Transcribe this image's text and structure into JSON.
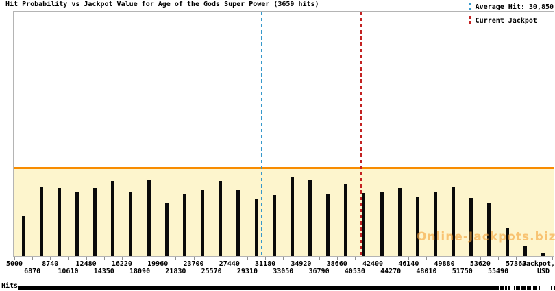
{
  "header": {
    "title": "Hit Probability vs Jackpot Value for Age of the Gods Super Power (3659 hits)"
  },
  "legend": {
    "items": [
      {
        "label": "Average Hit: 30,850",
        "color": "#3598CB",
        "line_style": "dashed"
      },
      {
        "label": "Current Jackpot",
        "color": "#C32222",
        "line_style": "dashed"
      }
    ]
  },
  "watermark": {
    "text": "Online-Jackpots.biz",
    "color": "rgba(246,164,58,0.62)"
  },
  "bottom": {
    "y_axis_label": "Hits"
  },
  "chart_data": {
    "type": "bar",
    "title": "Hit Probability vs Jackpot Value for Age of the Gods Super Power (3659 hits)",
    "xlabel": "Jackpot, USD",
    "ylabel": "Hits",
    "total_hits": 3659,
    "grid": false,
    "legend_position": "top-right",
    "x_axis": {
      "range": [
        5000,
        61100
      ],
      "bin_width": 1870,
      "tick_labels": [
        5000,
        6870,
        8740,
        10610,
        12480,
        14350,
        16220,
        18090,
        19960,
        21830,
        23700,
        25570,
        27440,
        29310,
        31180,
        33050,
        34920,
        36790,
        38660,
        40530,
        42400,
        44270,
        46140,
        48010,
        49880,
        51750,
        53620,
        55490,
        57360
      ]
    },
    "bars": [
      {
        "jackpot_usd": 5935,
        "hits": 81
      },
      {
        "jackpot_usd": 7805,
        "hits": 141
      },
      {
        "jackpot_usd": 9675,
        "hits": 139
      },
      {
        "jackpot_usd": 11545,
        "hits": 130
      },
      {
        "jackpot_usd": 13415,
        "hits": 139
      },
      {
        "jackpot_usd": 15285,
        "hits": 152
      },
      {
        "jackpot_usd": 17155,
        "hits": 130
      },
      {
        "jackpot_usd": 19025,
        "hits": 155
      },
      {
        "jackpot_usd": 20895,
        "hits": 108
      },
      {
        "jackpot_usd": 22765,
        "hits": 127
      },
      {
        "jackpot_usd": 24635,
        "hits": 136
      },
      {
        "jackpot_usd": 26505,
        "hits": 152
      },
      {
        "jackpot_usd": 28375,
        "hits": 136
      },
      {
        "jackpot_usd": 30245,
        "hits": 116
      },
      {
        "jackpot_usd": 32115,
        "hits": 125
      },
      {
        "jackpot_usd": 33985,
        "hits": 161
      },
      {
        "jackpot_usd": 35855,
        "hits": 155
      },
      {
        "jackpot_usd": 37725,
        "hits": 127
      },
      {
        "jackpot_usd": 39595,
        "hits": 148
      },
      {
        "jackpot_usd": 41465,
        "hits": 129
      },
      {
        "jackpot_usd": 43335,
        "hits": 130
      },
      {
        "jackpot_usd": 45205,
        "hits": 139
      },
      {
        "jackpot_usd": 47075,
        "hits": 122
      },
      {
        "jackpot_usd": 48945,
        "hits": 130
      },
      {
        "jackpot_usd": 50815,
        "hits": 141
      },
      {
        "jackpot_usd": 52685,
        "hits": 119
      },
      {
        "jackpot_usd": 54555,
        "hits": 109
      },
      {
        "jackpot_usd": 56425,
        "hits": 57
      },
      {
        "jackpot_usd": 58295,
        "hits": 20
      },
      {
        "jackpot_usd": 60165,
        "hits": 6
      }
    ],
    "average_hit_line": {
      "value": 30850,
      "color": "#3598CB",
      "style": "dashed"
    },
    "current_jackpot_line": {
      "value": 41180,
      "color": "#C32222",
      "style": "dashed"
    },
    "band": {
      "fill": "#FDF5CD",
      "top_line_color": "#F88C00"
    },
    "bar_color": "#0a0a0a"
  },
  "decor": {
    "barcode_segments": [
      [
        729,
        6
      ],
      [
        737,
        3
      ],
      [
        742,
        2
      ],
      [
        750,
        2
      ],
      [
        753,
        6
      ],
      [
        761,
        6
      ],
      [
        769,
        6
      ],
      [
        778,
        5
      ],
      [
        786,
        2
      ],
      [
        795,
        1
      ],
      [
        804,
        2
      ],
      [
        808,
        2
      ]
    ]
  }
}
